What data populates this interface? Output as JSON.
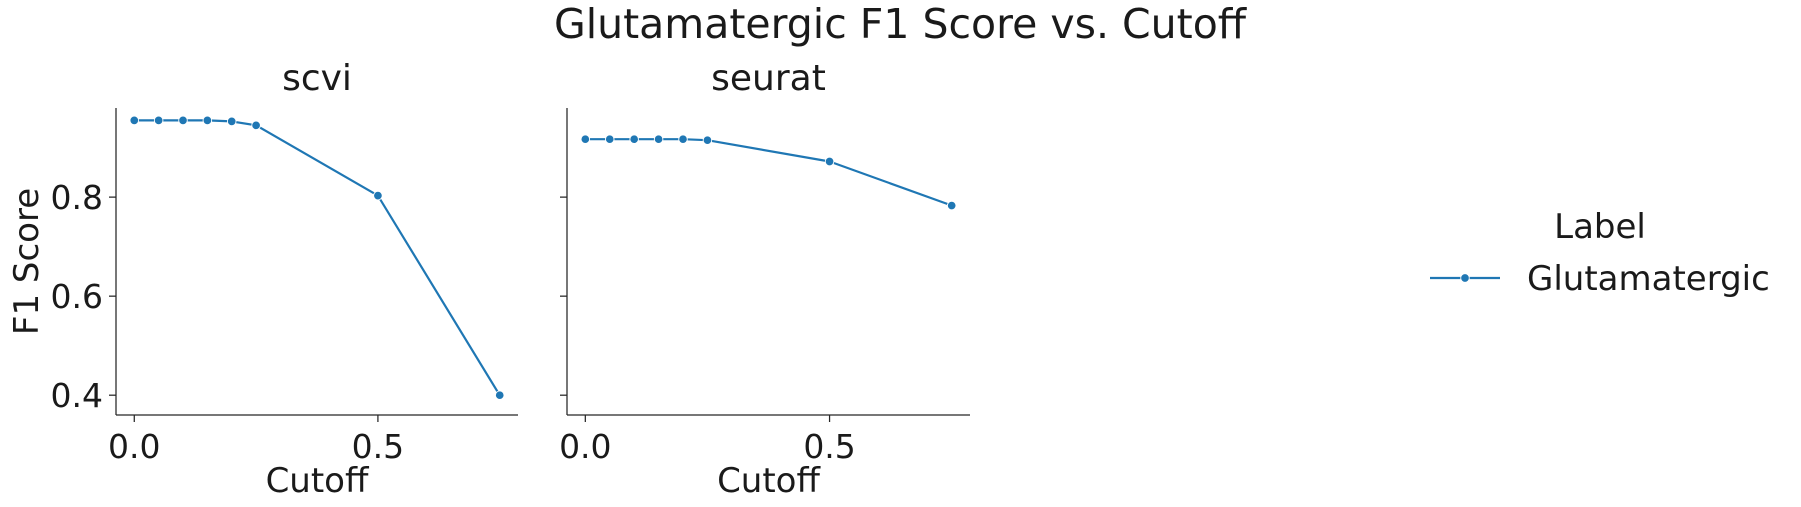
{
  "figure": {
    "title": "Glutamatergic F1 Score vs. Cutoff"
  },
  "legend": {
    "title": "Label",
    "placement": "right"
  },
  "colors": {
    "series": "#1f77b4",
    "axis": "#262626",
    "text": "#1a1a1a"
  },
  "chart_data": [
    {
      "type": "line",
      "title": "scvi",
      "xlabel": "Cutoff",
      "ylabel": "F1 Score",
      "xlim": [
        -0.0375,
        0.7875
      ],
      "ylim": [
        0.36,
        0.98
      ],
      "xticks": [
        0.0,
        0.5
      ],
      "xtick_labels": [
        "0.0",
        "0.5"
      ],
      "yticks": [
        0.4,
        0.6,
        0.8
      ],
      "ytick_labels": [
        "0.4",
        "0.6",
        "0.8"
      ],
      "grid": false,
      "series": [
        {
          "name": "Glutamatergic",
          "x": [
            0.0,
            0.05,
            0.1,
            0.15,
            0.2,
            0.25,
            0.5,
            0.75
          ],
          "y": [
            0.955,
            0.955,
            0.955,
            0.955,
            0.953,
            0.945,
            0.803,
            0.4
          ]
        }
      ]
    },
    {
      "type": "line",
      "title": "seurat",
      "xlabel": "Cutoff",
      "ylabel": "",
      "xlim": [
        -0.0375,
        0.7875
      ],
      "ylim": [
        0.36,
        0.98
      ],
      "xticks": [
        0.0,
        0.5
      ],
      "xtick_labels": [
        "0.0",
        "0.5"
      ],
      "yticks": [
        0.4,
        0.6,
        0.8
      ],
      "ytick_labels": [
        "",
        "",
        ""
      ],
      "grid": false,
      "series": [
        {
          "name": "Glutamatergic",
          "x": [
            0.0,
            0.05,
            0.1,
            0.15,
            0.2,
            0.25,
            0.5,
            0.75
          ],
          "y": [
            0.917,
            0.917,
            0.917,
            0.917,
            0.917,
            0.915,
            0.872,
            0.783
          ]
        }
      ]
    }
  ]
}
